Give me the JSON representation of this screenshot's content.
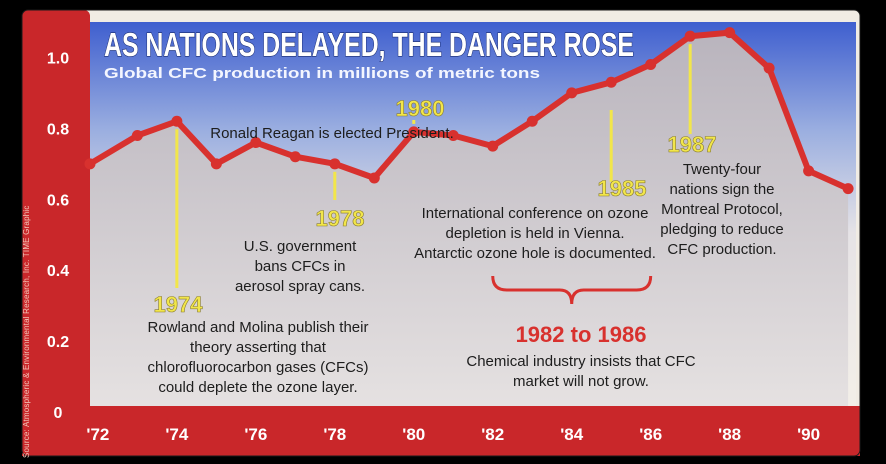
{
  "title": "AS NATIONS DELAYED, THE DANGER ROSE",
  "subtitle": "Global CFC production in millions of metric tons",
  "source": "Source: Atmospheric & Environmental Research, Inc.    TIME Graphic",
  "colors": {
    "background": "#f1ece4",
    "frame": "#c9272a",
    "line": "#d8312e",
    "highlight": "#f2e64a",
    "sky_top": "#3f5fcf"
  },
  "chart_data": {
    "type": "area",
    "title": "AS NATIONS DELAYED, THE DANGER ROSE",
    "subtitle": "Global CFC production in millions of metric tons",
    "x_ticks": [
      "'72",
      "'74",
      "'76",
      "'78",
      "'80",
      "'82",
      "'84",
      "'86",
      "'88",
      "'90"
    ],
    "y_ticks": [
      "0",
      "0.2",
      "0.4",
      "0.6",
      "0.8",
      "1.0"
    ],
    "ylim": [
      0,
      1.1
    ],
    "xlim": [
      1971.8,
      1991.2
    ],
    "grid": false,
    "x": [
      1971.8,
      1973,
      1974,
      1975,
      1976,
      1977,
      1978,
      1979,
      1980,
      1981,
      1982,
      1983,
      1984,
      1985,
      1986,
      1987,
      1988,
      1989,
      1990,
      1991
    ],
    "values": [
      0.7,
      0.78,
      0.82,
      0.7,
      0.76,
      0.72,
      0.7,
      0.66,
      0.79,
      0.78,
      0.75,
      0.82,
      0.9,
      0.93,
      0.98,
      1.06,
      1.07,
      0.97,
      0.68,
      0.63
    ],
    "annotations": [
      {
        "year_label": "1974",
        "x": 1974,
        "text": [
          "Rowland and Molina publish their",
          "theory asserting that",
          "chlorofluorocarbon gases (CFCs)",
          "could deplete the ozone layer."
        ]
      },
      {
        "year_label": "1978",
        "x": 1978,
        "text": [
          "U.S. government",
          "bans CFCs in",
          "aerosol spray cans."
        ]
      },
      {
        "year_label": "1980",
        "x": 1980,
        "text": [
          "Ronald Reagan is elected President."
        ]
      },
      {
        "year_label": "1985",
        "x": 1985,
        "text": [
          "International conference on ozone",
          "depletion is held in Vienna.",
          "Antarctic ozone hole is documented."
        ]
      },
      {
        "year_label": "1987",
        "x": 1987,
        "text": [
          "Twenty-four",
          "nations sign the",
          "Montreal Protocol,",
          "pledging to reduce",
          "CFC production."
        ]
      }
    ],
    "bracket": {
      "label": "1982 to 1986",
      "from": 1982,
      "to": 1986,
      "text": [
        "Chemical industry insists that CFC",
        "market will not grow."
      ]
    }
  }
}
